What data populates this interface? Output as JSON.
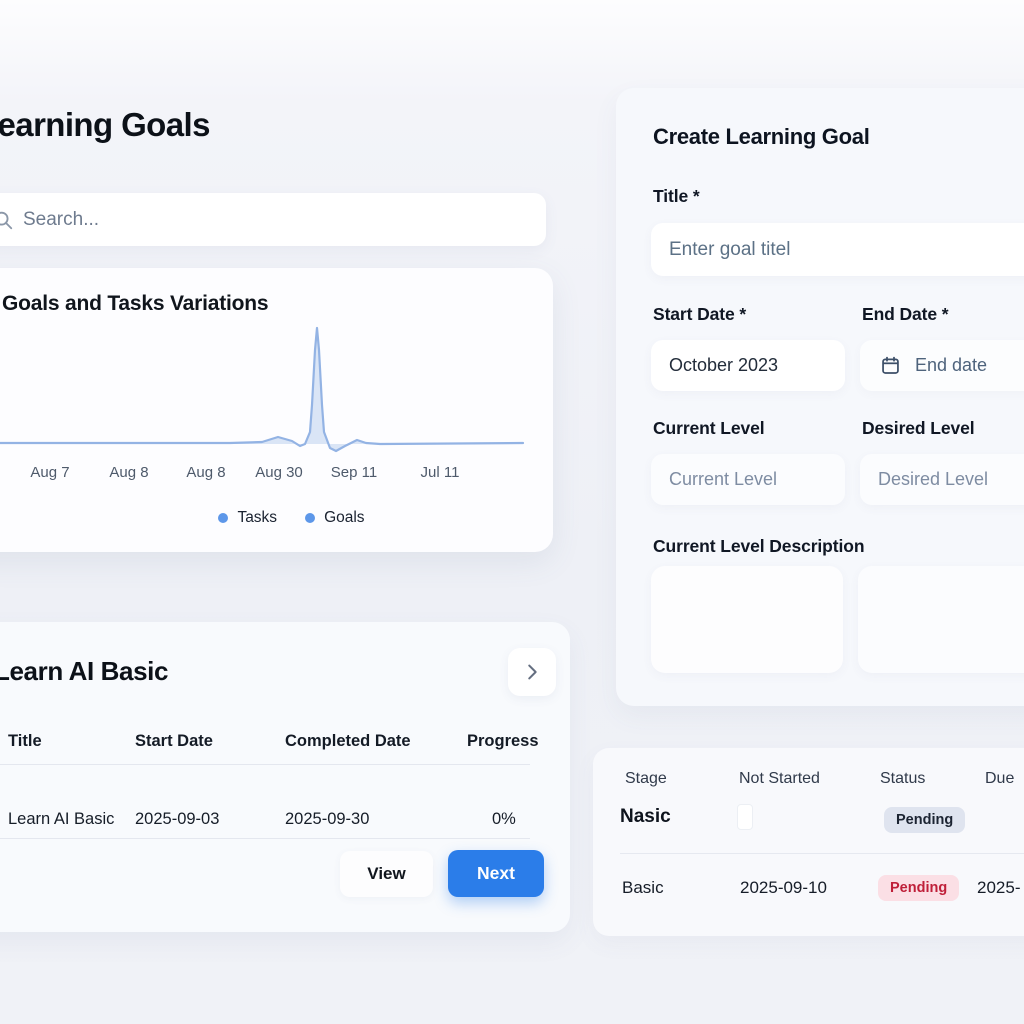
{
  "header": {
    "title": "Learning Goals"
  },
  "search": {
    "placeholder": "Search..."
  },
  "chart_data": {
    "type": "area",
    "title": "Goals and Tasks Variations",
    "categories": [
      "Aug 7",
      "Aug 8",
      "Aug 8",
      "Aug 30",
      "Sep 11",
      "Jul 11"
    ],
    "series": [
      {
        "name": "Tasks",
        "values": [
          0,
          0,
          0,
          0,
          0,
          0
        ],
        "peak_between": [
          "Aug 30",
          "Sep 11"
        ],
        "peak_relative_height": 1.0
      },
      {
        "name": "Goals",
        "values": [
          0,
          0,
          0,
          0,
          0,
          0
        ],
        "peak_between": [
          "Aug 30",
          "Sep 11"
        ],
        "peak_relative_height": 1.0
      }
    ],
    "legend_position": "bottom",
    "grid": false,
    "line_color": "#93b3e4",
    "fill_color": "rgba(147,179,228,0.32)",
    "svg_points": [
      [
        0,
        133
      ],
      [
        270,
        133
      ],
      [
        302,
        132
      ],
      [
        318,
        127
      ],
      [
        332,
        131
      ],
      [
        340,
        136
      ],
      [
        345,
        134
      ],
      [
        350,
        122
      ],
      [
        352,
        95
      ],
      [
        355,
        40
      ],
      [
        357,
        18
      ],
      [
        359,
        40
      ],
      [
        362,
        95
      ],
      [
        364,
        122
      ],
      [
        370,
        138
      ],
      [
        376,
        141
      ],
      [
        385,
        136
      ],
      [
        397,
        130
      ],
      [
        406,
        133
      ],
      [
        420,
        134
      ],
      [
        563,
        133
      ]
    ],
    "baseline_y": 134
  },
  "goal_section": {
    "title": "Learn AI Basic",
    "table": {
      "columns": [
        "Title",
        "Start Date",
        "Completed Date",
        "Progress"
      ],
      "rows": [
        {
          "title": "Learn AI Basic",
          "start_date": "2025-09-03",
          "completed_date": "2025-09-30",
          "progress": "0%"
        }
      ]
    },
    "actions": {
      "view_label": "View",
      "next_label": "Next"
    }
  },
  "form": {
    "title": "Create Learning Goal",
    "fields": {
      "title": {
        "label": "Title *",
        "placeholder": "Enter goal titel"
      },
      "start_date": {
        "label": "Start Date *",
        "value": "October 2023"
      },
      "end_date": {
        "label": "End Date *",
        "placeholder": "End date"
      },
      "current_level": {
        "label": "Current Level",
        "placeholder": "Current Level"
      },
      "desired_level": {
        "label": "Desired Level",
        "placeholder": "Desired Level"
      },
      "current_level_description": {
        "label": "Current Level Description"
      }
    }
  },
  "stage_table": {
    "columns": [
      "Stage",
      "Not Started",
      "Status",
      "Due"
    ],
    "rows": [
      {
        "stage": "Nasic",
        "not_started": "",
        "status": "Pending",
        "status_variant": "neutral",
        "due": ""
      },
      {
        "stage": "Basic",
        "not_started": "2025-09-10",
        "status": "Pending",
        "status_variant": "danger",
        "due": "2025-"
      }
    ]
  },
  "colors": {
    "accent_blue": "#2b7de9",
    "chart_line": "#93b3e4",
    "legend_dot": "#5d97e9",
    "badge_neutral_bg": "#dfe4ef",
    "badge_neutral_text": "#1c2432",
    "badge_danger_bg": "#fbdfe5",
    "badge_danger_text": "#bf1f39"
  },
  "icons": {
    "search": "magnifier",
    "calendar": "calendar",
    "chevron_right": "chevron-right",
    "legend_dot": "filled-circle"
  }
}
